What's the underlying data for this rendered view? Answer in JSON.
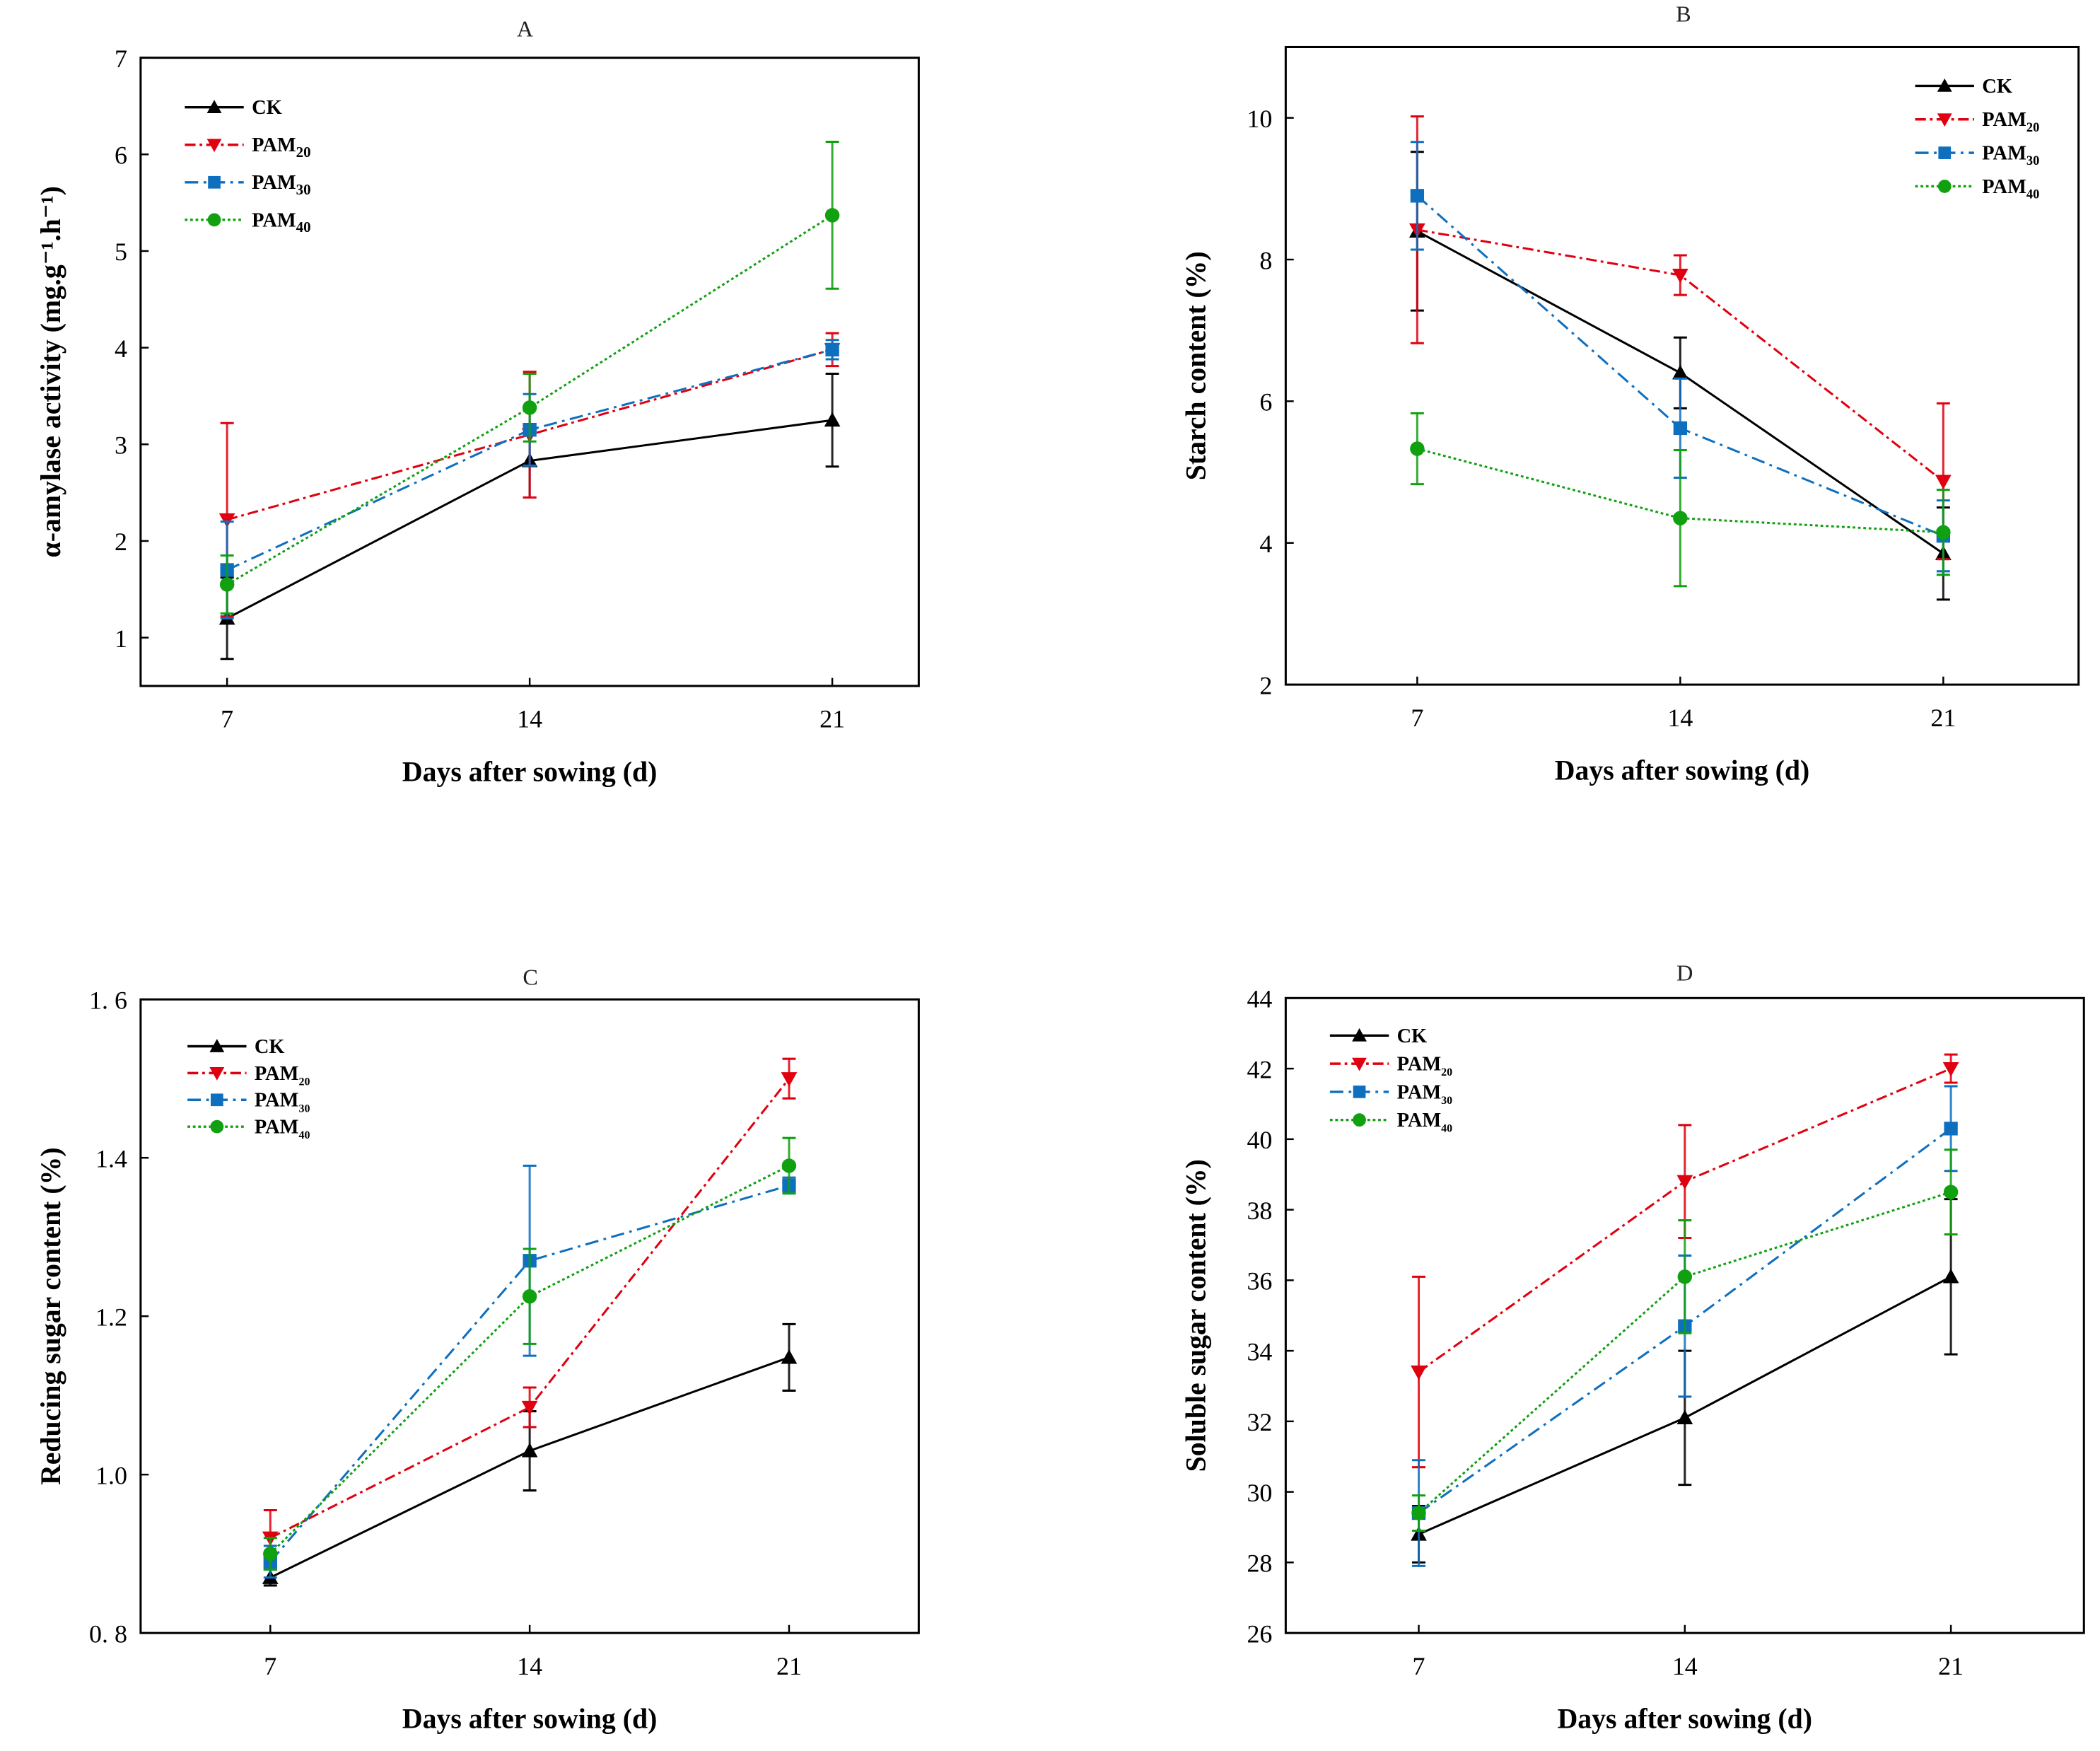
{
  "colors": {
    "CK": "#000000",
    "PAM20": "#e0000f",
    "PAM30": "#0f6fbf",
    "PAM40": "#10a010"
  },
  "chart_data": [
    {
      "type": "line",
      "title": "A",
      "xlabel": "Days after sowing (d)",
      "ylabel": "α-amylase activity (mg.g⁻¹.h⁻¹)",
      "x": [
        7,
        14,
        21
      ],
      "xlim": [
        5,
        23
      ],
      "ylim": [
        0.5,
        7
      ],
      "xticks": [
        "7",
        "14",
        "21"
      ],
      "yticks": [
        {
          "v": 1,
          "t": "1"
        },
        {
          "v": 2,
          "t": "2"
        },
        {
          "v": 3,
          "t": "3"
        },
        {
          "v": 4,
          "t": "4"
        },
        {
          "v": 5,
          "t": "5"
        },
        {
          "v": 6,
          "t": "6"
        },
        {
          "v": 7,
          "t": "7"
        }
      ],
      "legend": "top-left",
      "series": [
        {
          "key": "CK",
          "name": "CK",
          "sub": "",
          "values": [
            1.2,
            2.83,
            3.25
          ],
          "errors": [
            0.42,
            0.38,
            0.48
          ]
        },
        {
          "key": "PAM20",
          "name": "PAM",
          "sub": "20",
          "values": [
            2.22,
            3.1,
            3.98
          ],
          "errors": [
            1.0,
            0.65,
            0.17
          ]
        },
        {
          "key": "PAM30",
          "name": "PAM",
          "sub": "30",
          "values": [
            1.7,
            3.15,
            3.98
          ],
          "errors": [
            0.5,
            0.37,
            0.1
          ]
        },
        {
          "key": "PAM40",
          "name": "PAM",
          "sub": "40",
          "values": [
            1.55,
            3.38,
            5.37
          ],
          "errors": [
            0.3,
            0.35,
            0.76
          ]
        }
      ]
    },
    {
      "type": "line",
      "title": "B",
      "xlabel": "Days after sowing (d)",
      "ylabel": "Starch content (%)",
      "x": [
        7,
        14,
        21
      ],
      "xlim": [
        3.5,
        24.6
      ],
      "ylim": [
        2,
        11
      ],
      "xticks": [
        "7",
        "14",
        "21"
      ],
      "yticks": [
        {
          "v": 2,
          "t": "2"
        },
        {
          "v": 4,
          "t": "4"
        },
        {
          "v": 6,
          "t": "6"
        },
        {
          "v": 8,
          "t": "8"
        },
        {
          "v": 10,
          "t": "10"
        }
      ],
      "legend": "top-right",
      "series": [
        {
          "key": "CK",
          "name": "CK",
          "sub": "",
          "values": [
            8.4,
            6.4,
            3.85
          ],
          "errors": [
            1.12,
            0.5,
            0.65
          ]
        },
        {
          "key": "PAM20",
          "name": "PAM",
          "sub": "20",
          "values": [
            8.42,
            7.78,
            4.87
          ],
          "errors": [
            1.6,
            0.28,
            1.1
          ]
        },
        {
          "key": "PAM30",
          "name": "PAM",
          "sub": "30",
          "values": [
            8.9,
            5.62,
            4.1
          ],
          "errors": [
            0.76,
            0.7,
            0.5
          ]
        },
        {
          "key": "PAM40",
          "name": "PAM",
          "sub": "40",
          "values": [
            5.33,
            4.35,
            4.15
          ],
          "errors": [
            0.5,
            0.96,
            0.6
          ]
        }
      ]
    },
    {
      "type": "line",
      "title": "C",
      "xlabel": "Days after sowing (d)",
      "ylabel": "Reducing sugar content (%)",
      "x": [
        7,
        14,
        21
      ],
      "xlim": [
        3.5,
        24.5
      ],
      "ylim": [
        0.8,
        1.6
      ],
      "xticks": [
        "7",
        "14",
        "21"
      ],
      "yticks": [
        {
          "v": 0.8,
          "t": "0. 8"
        },
        {
          "v": 1.0,
          "t": "1.0"
        },
        {
          "v": 1.2,
          "t": "1.2"
        },
        {
          "v": 1.4,
          "t": "1.4"
        },
        {
          "v": 1.6,
          "t": "1. 6"
        }
      ],
      "legend": "top-left",
      "series": [
        {
          "key": "CK",
          "name": "CK",
          "sub": "",
          "values": [
            0.87,
            1.03,
            1.148
          ],
          "errors": [
            0.01,
            0.05,
            0.042
          ]
        },
        {
          "key": "PAM20",
          "name": "PAM",
          "sub": "20",
          "values": [
            0.92,
            1.085,
            1.5
          ],
          "errors": [
            0.035,
            0.025,
            0.025
          ]
        },
        {
          "key": "PAM30",
          "name": "PAM",
          "sub": "30",
          "values": [
            0.89,
            1.27,
            1.365
          ],
          "errors": [
            0.02,
            0.12,
            0.01
          ]
        },
        {
          "key": "PAM40",
          "name": "PAM",
          "sub": "40",
          "values": [
            0.9,
            1.225,
            1.39
          ],
          "errors": [
            0.02,
            0.06,
            0.035
          ]
        }
      ]
    },
    {
      "type": "line",
      "title": "D",
      "xlabel": "Days after sowing (d)",
      "ylabel": "Soluble sugar content (%)",
      "x": [
        7,
        14,
        21
      ],
      "xlim": [
        3.5,
        24.5
      ],
      "ylim": [
        26,
        44
      ],
      "xticks": [
        "7",
        "14",
        "21"
      ],
      "yticks": [
        {
          "v": 26,
          "t": "26"
        },
        {
          "v": 28,
          "t": "28"
        },
        {
          "v": 30,
          "t": "30"
        },
        {
          "v": 32,
          "t": "32"
        },
        {
          "v": 34,
          "t": "34"
        },
        {
          "v": 36,
          "t": "36"
        },
        {
          "v": 38,
          "t": "38"
        },
        {
          "v": 40,
          "t": "40"
        },
        {
          "v": 42,
          "t": "42"
        },
        {
          "v": 44,
          "t": "44"
        }
      ],
      "legend": "top-left",
      "series": [
        {
          "key": "CK",
          "name": "CK",
          "sub": "",
          "values": [
            28.8,
            32.1,
            36.1
          ],
          "errors": [
            0.8,
            1.9,
            2.2
          ]
        },
        {
          "key": "PAM20",
          "name": "PAM",
          "sub": "20",
          "values": [
            33.4,
            38.8,
            42.0
          ],
          "errors": [
            2.7,
            1.6,
            0.4
          ]
        },
        {
          "key": "PAM30",
          "name": "PAM",
          "sub": "30",
          "values": [
            29.4,
            34.7,
            40.3
          ],
          "errors": [
            1.5,
            2.0,
            1.2
          ]
        },
        {
          "key": "PAM40",
          "name": "PAM",
          "sub": "40",
          "values": [
            29.4,
            36.1,
            38.5
          ],
          "errors": [
            0.5,
            1.6,
            1.2
          ]
        }
      ]
    }
  ]
}
